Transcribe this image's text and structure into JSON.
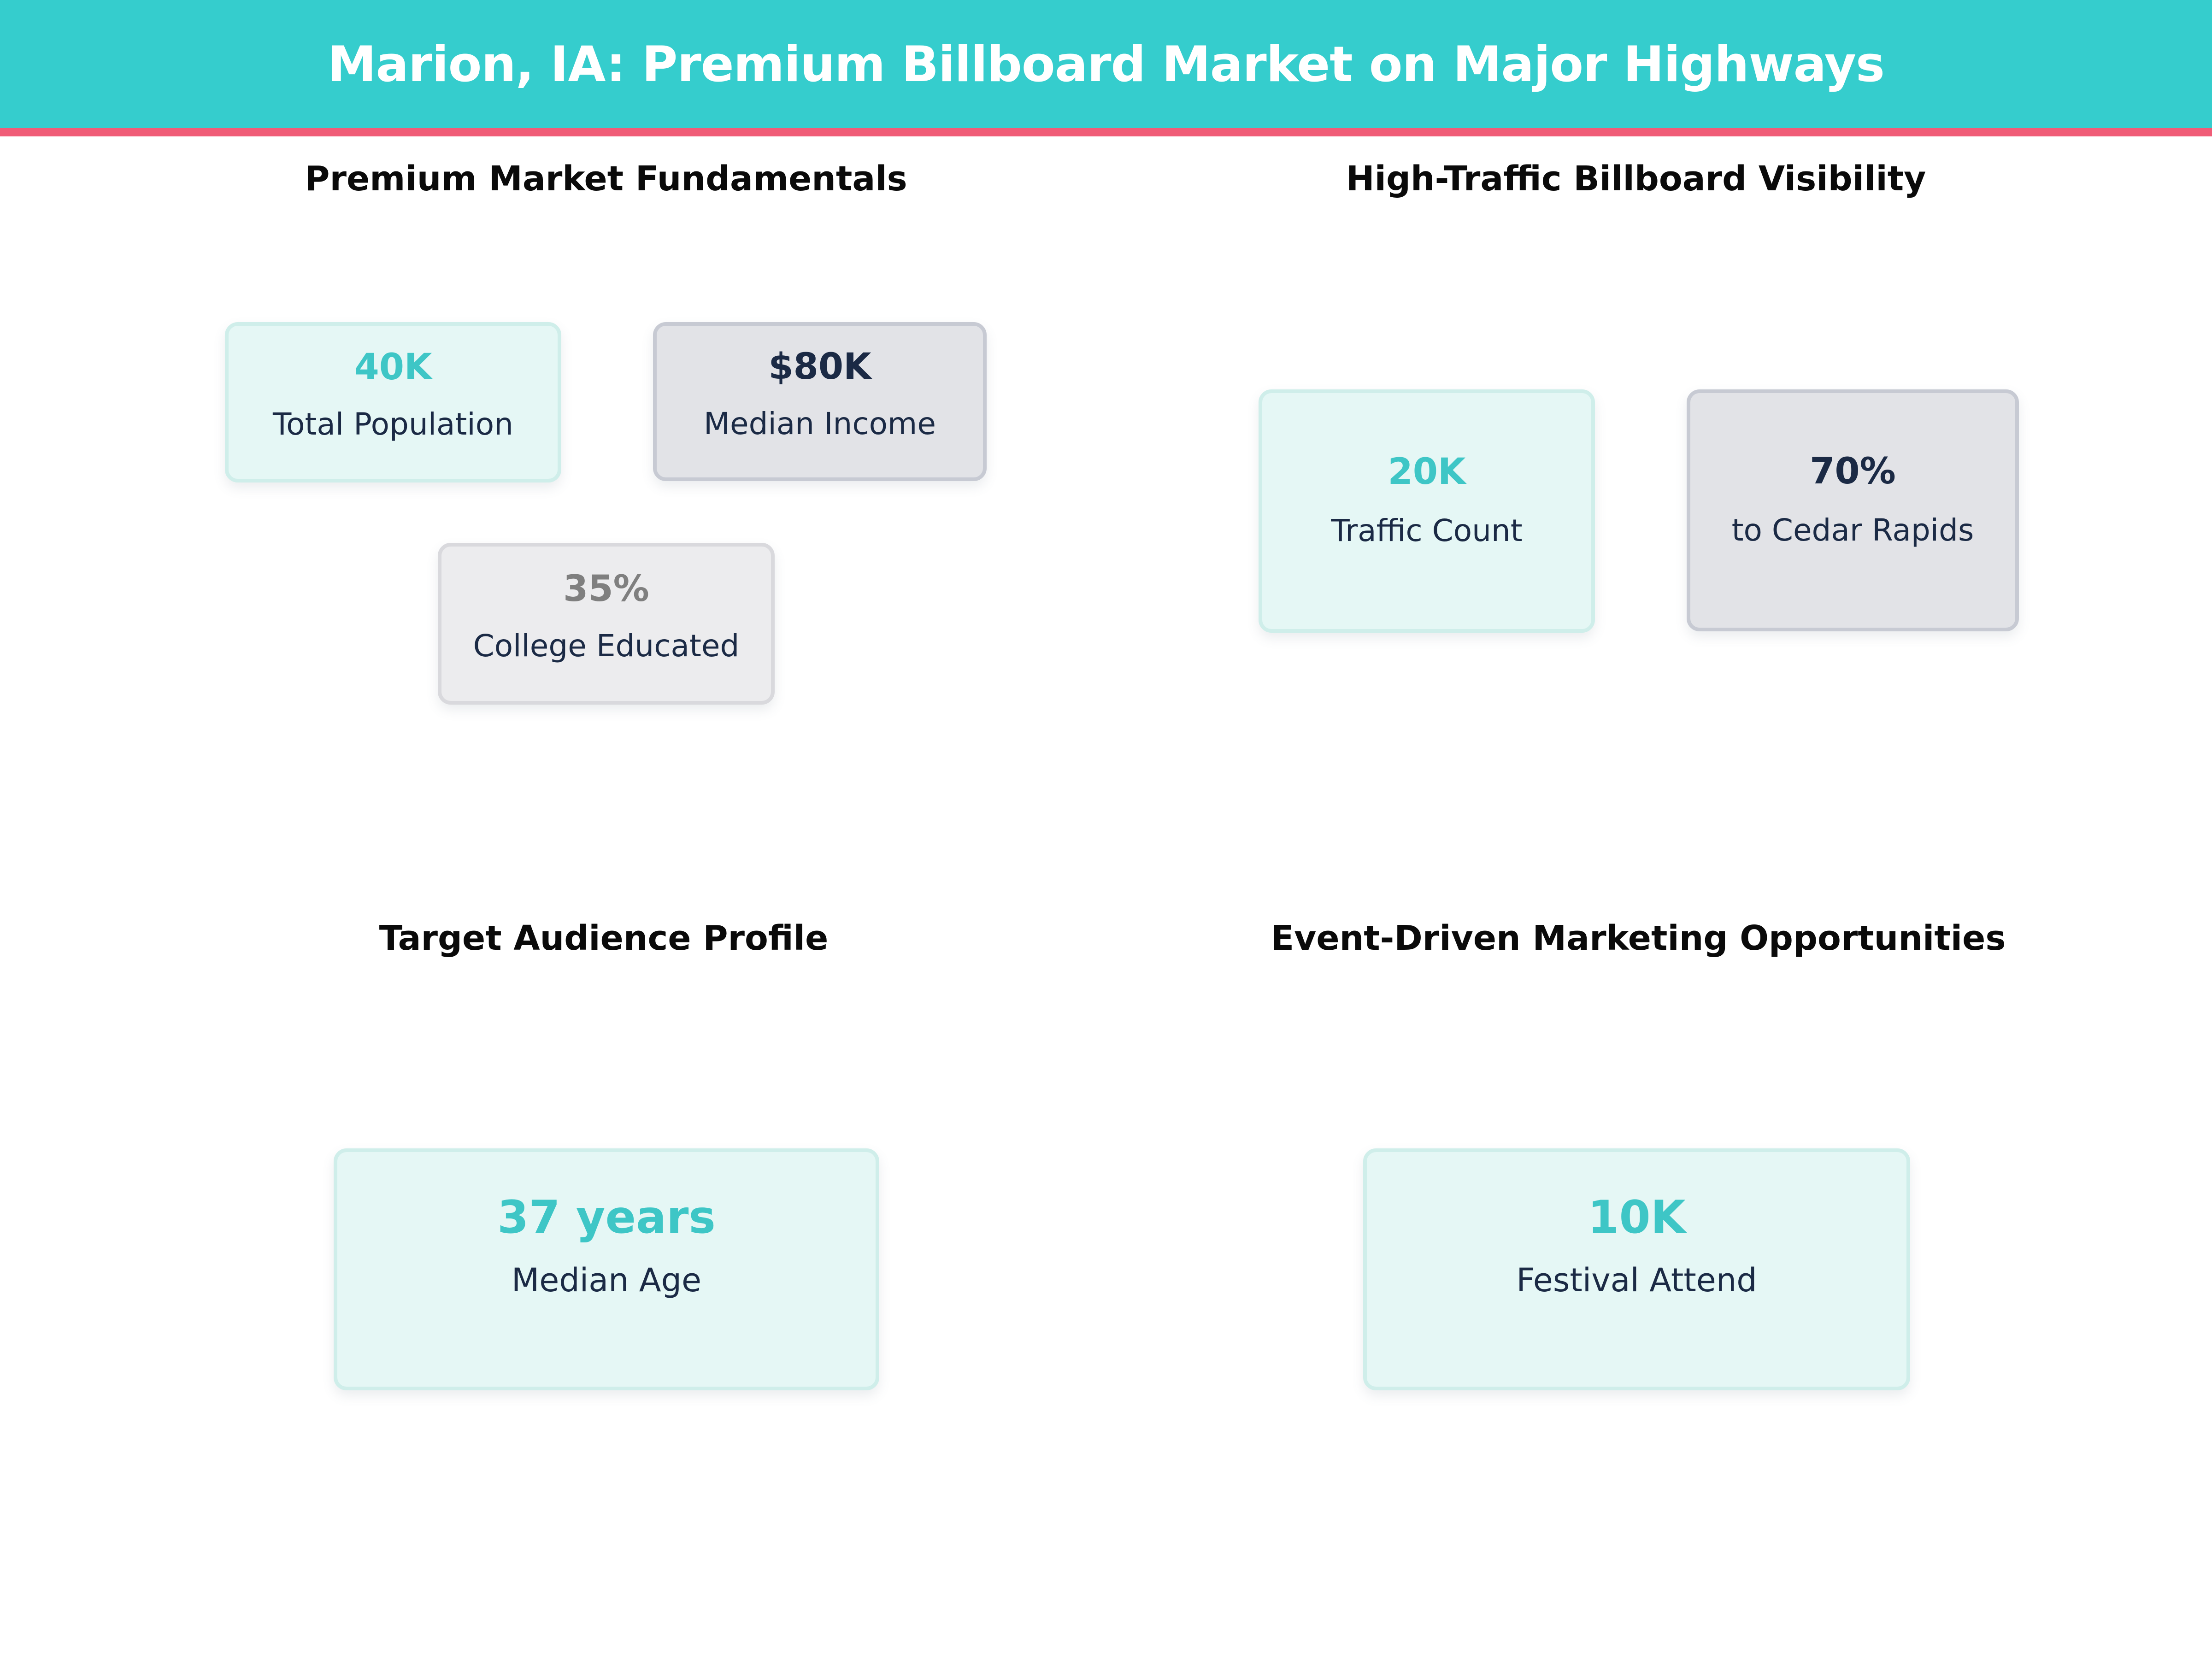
{
  "colors": {
    "header-bg": "#35cdcd",
    "divider": "#f05c77",
    "mint-bg": "#e5f7f5",
    "mint-border": "#cfeeea",
    "gray-bg": "#e2e3e7",
    "gray-border": "#c7cad3",
    "lightgray-bg": "#ececee",
    "lightgray-border": "#d9d9dd",
    "teal-text": "#3ec6c6",
    "navy-text": "#1b2a45",
    "gray-text": "#7f7f7f",
    "title-text": "#0a0a0a",
    "page-bg": "#ffffff"
  },
  "header": {
    "title": "Marion, IA: Premium Billboard Market on Major Highways"
  },
  "sections": [
    {
      "title": "Premium Market Fundamentals",
      "cards": [
        {
          "value": "40K",
          "label": "Total Population"
        },
        {
          "value": "$80K",
          "label": "Median Income"
        },
        {
          "value": "35%",
          "label": "College Educated"
        }
      ]
    },
    {
      "title": "High-Traffic Billboard Visibility",
      "cards": [
        {
          "value": "20K",
          "label": "Traffic Count"
        },
        {
          "value": "70%",
          "label": "to Cedar Rapids"
        }
      ]
    },
    {
      "title": "Target Audience Profile",
      "cards": [
        {
          "value": "37 years",
          "label": "Median Age"
        }
      ]
    },
    {
      "title": "Event-Driven Marketing Opportunities",
      "cards": [
        {
          "value": "10K",
          "label": "Festival Attend"
        }
      ]
    }
  ],
  "chart_data": {
    "type": "table",
    "title": "Marion, IA: Premium Billboard Market on Major Highways",
    "groups": [
      {
        "title": "Premium Market Fundamentals",
        "stats": [
          {
            "label": "Total Population",
            "value": "40K",
            "numeric": 40000
          },
          {
            "label": "Median Income",
            "value": "$80K",
            "numeric": 80000
          },
          {
            "label": "College Educated",
            "value": "35%",
            "numeric": 0.35
          }
        ]
      },
      {
        "title": "High-Traffic Billboard Visibility",
        "stats": [
          {
            "label": "Traffic Count",
            "value": "20K",
            "numeric": 20000
          },
          {
            "label": "to Cedar Rapids",
            "value": "70%",
            "numeric": 0.7
          }
        ]
      },
      {
        "title": "Target Audience Profile",
        "stats": [
          {
            "label": "Median Age",
            "value": "37 years",
            "numeric": 37
          }
        ]
      },
      {
        "title": "Event-Driven Marketing Opportunities",
        "stats": [
          {
            "label": "Festival Attend",
            "value": "10K",
            "numeric": 10000
          }
        ]
      }
    ]
  }
}
